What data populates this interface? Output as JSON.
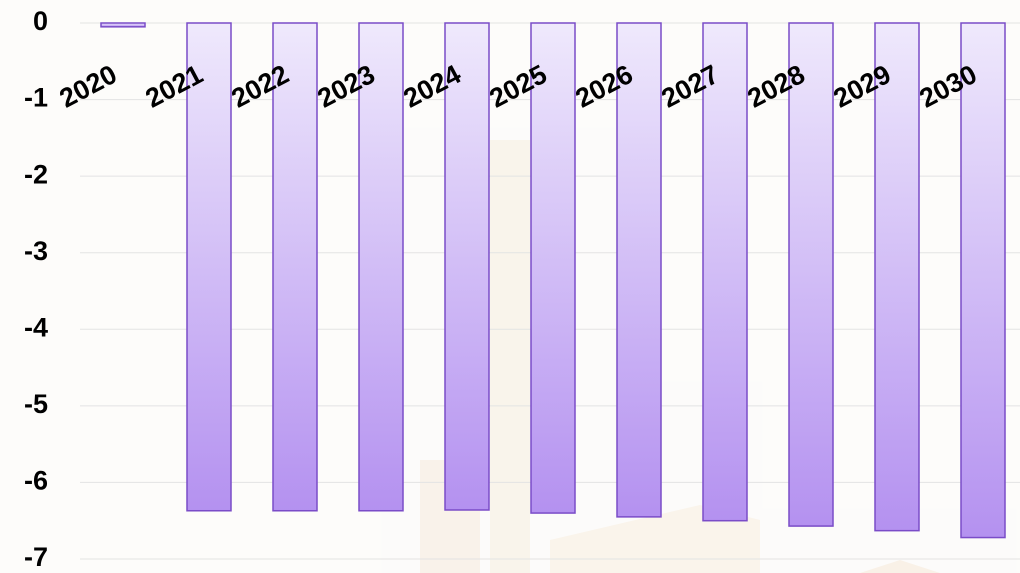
{
  "chart_data": {
    "type": "bar",
    "categories": [
      "2020",
      "2021",
      "2022",
      "2023",
      "2024",
      "2025",
      "2026",
      "2027",
      "2028",
      "2029",
      "2030"
    ],
    "values": [
      -0.05,
      -6.37,
      -6.37,
      -6.37,
      -6.36,
      -6.4,
      -6.45,
      -6.5,
      -6.57,
      -6.63,
      -6.72
    ],
    "color": "#b491f0",
    "ylim": [
      -7,
      0
    ],
    "yticks": [
      0,
      -1,
      -2,
      -3,
      -4,
      -5,
      -6,
      -7
    ],
    "grid": true
  }
}
